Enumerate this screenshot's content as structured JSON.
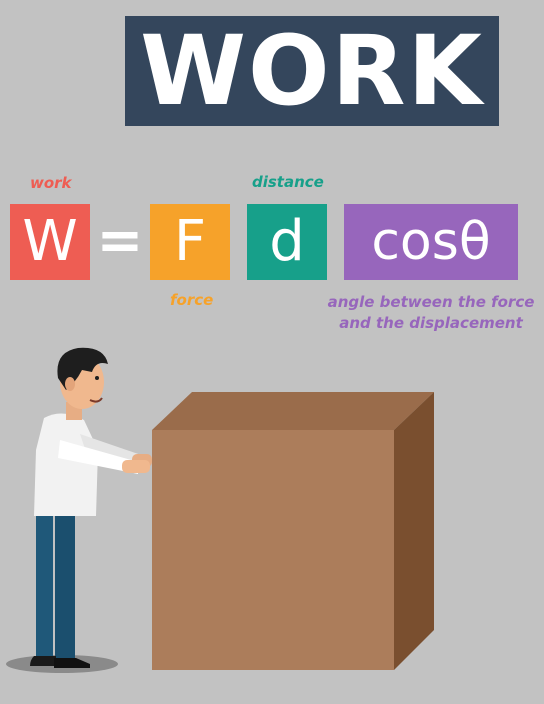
{
  "title": "WORK",
  "formula": {
    "w": "W",
    "equals": "=",
    "f": "F",
    "d": "d",
    "cos": "cosθ"
  },
  "labels": {
    "work": "work",
    "distance": "distance",
    "force": "force",
    "angle": "angle between the force and the displacement"
  },
  "colors": {
    "background": "#c2c2c2",
    "title_box": "#34465c",
    "work": "#ee5d53",
    "force": "#f6a22a",
    "distance": "#17a08a",
    "angle": "#9766bc",
    "box_front": "#ac7d5b",
    "box_top": "#9a6c4b",
    "box_side": "#7a4f2f"
  }
}
